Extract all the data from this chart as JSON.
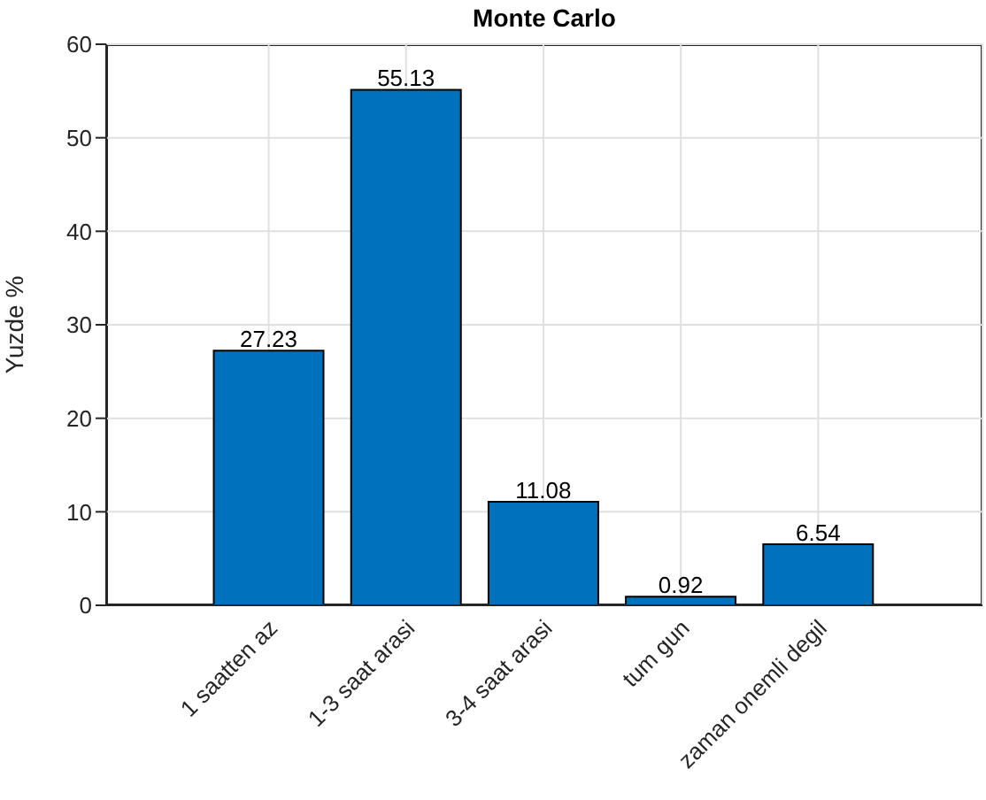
{
  "chart_data": {
    "type": "bar",
    "title": "Monte Carlo",
    "ylabel": "Yuzde %",
    "categories": [
      "1 saatten az",
      "1-3 saat arasi",
      "3-4 saat arasi",
      "tum gun",
      "zaman onemli degil"
    ],
    "values": [
      27.23,
      55.13,
      11.08,
      0.92,
      6.54
    ],
    "color": "#0072bd",
    "ylim": [
      0,
      60
    ],
    "yticks": [
      0,
      10,
      20,
      30,
      40,
      50,
      60
    ],
    "grid": true,
    "data_labels": true
  }
}
